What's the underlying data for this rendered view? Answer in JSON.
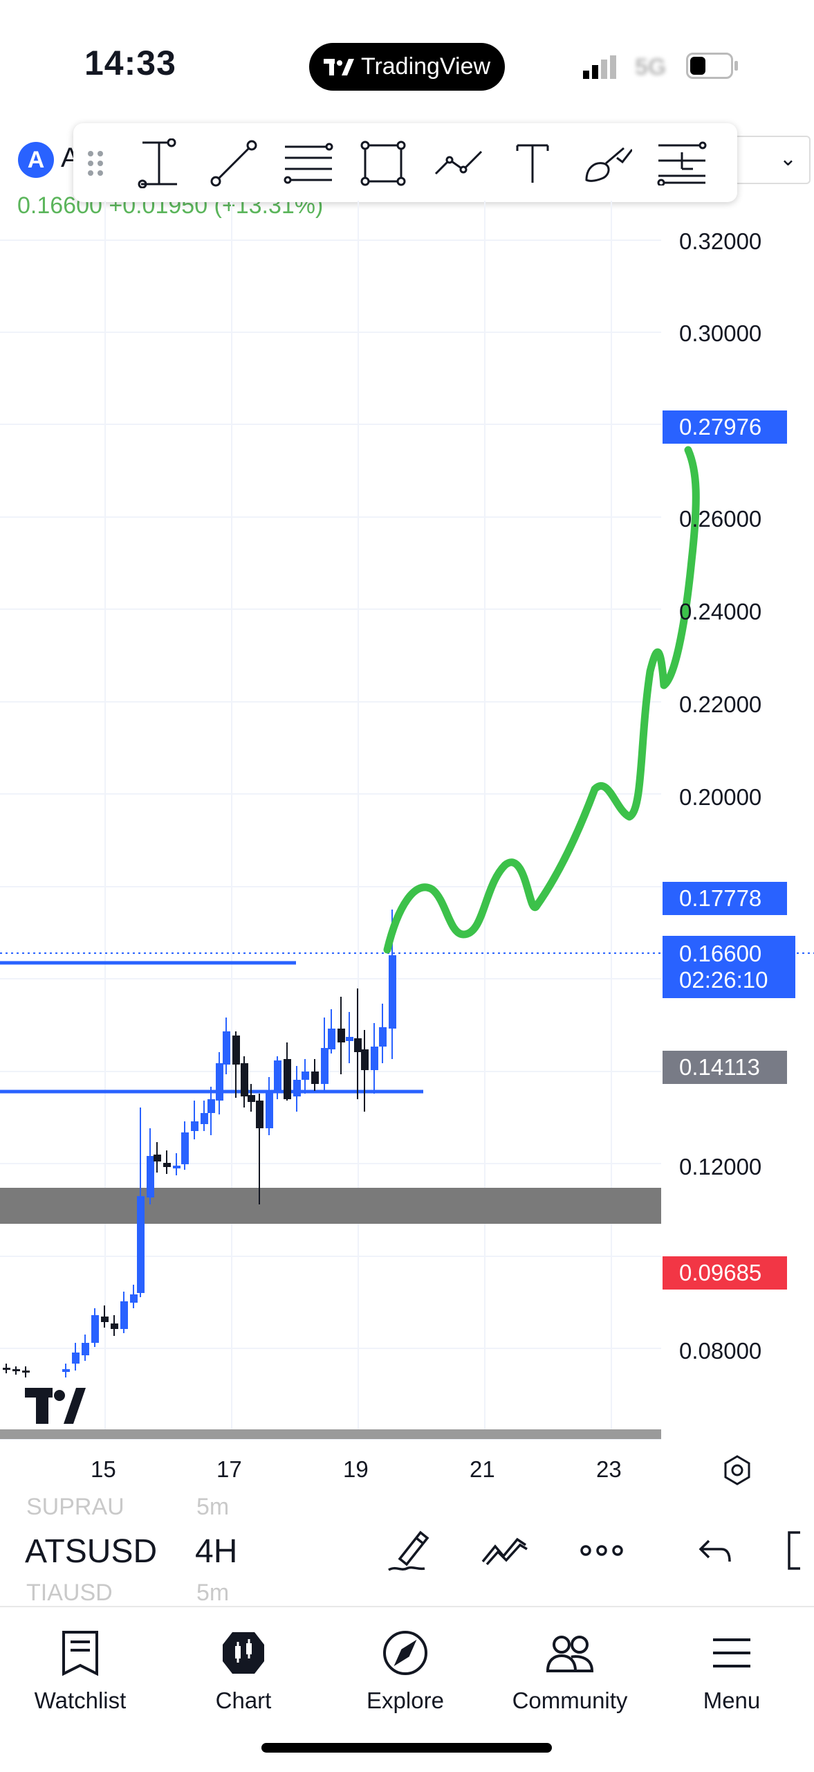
{
  "status_bar": {
    "time": "14:33",
    "app_pill": "TradingView",
    "network": "5G"
  },
  "header": {
    "symbol_initial": "A",
    "symbol_letter": "A",
    "price_line": "0.16600  +0.01950 (+13.31%)"
  },
  "draw_toolbar": {
    "tools": [
      "drag-handle",
      "vertical-line-tool",
      "trend-line-tool",
      "fib-retracement-tool",
      "rectangle-tool",
      "path-tool",
      "text-tool",
      "brush-tool",
      "long-position-tool"
    ]
  },
  "chart": {
    "price_axis": [
      "0.32000",
      "0.30000",
      "0.26000",
      "0.24000",
      "0.22000",
      "0.20000",
      "0.12000",
      "0.08000"
    ],
    "badges": {
      "target": "0.27976",
      "alert": "0.17778",
      "current_price": "0.16600",
      "countdown": "02:26:10",
      "gray_level": "0.14113",
      "low_level": "0.09685"
    },
    "date_axis": [
      "15",
      "17",
      "19",
      "21",
      "23"
    ],
    "colors": {
      "bull": "#2962ff",
      "bear": "#131722",
      "projection": "#3cc14a",
      "alert_badge": "#2962ff",
      "low_badge": "#f23645",
      "gray_badge": "#787b86"
    }
  },
  "chart_controls": {
    "symbol_prev": "SUPRAU",
    "interval_prev": "5m",
    "symbol": "ATSUSD",
    "interval": "4H",
    "symbol_next": "TIAUSD",
    "interval_next": "5m"
  },
  "bottom_nav": {
    "items": [
      {
        "label": "Watchlist"
      },
      {
        "label": "Chart"
      },
      {
        "label": "Explore"
      },
      {
        "label": "Community"
      },
      {
        "label": "Menu"
      }
    ]
  }
}
